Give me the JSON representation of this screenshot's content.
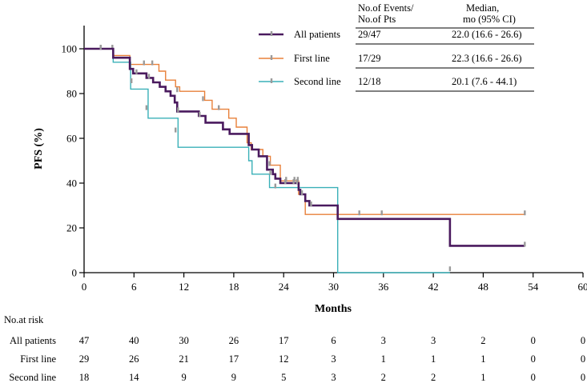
{
  "chart_data": {
    "type": "line",
    "subtype": "kaplan-meier",
    "title": "",
    "xlabel": "Months",
    "ylabel": "PFS (%)",
    "xlim": [
      0,
      60
    ],
    "ylim": [
      0,
      100
    ],
    "xticks": [
      0,
      6,
      12,
      18,
      24,
      30,
      36,
      42,
      48,
      54,
      60
    ],
    "yticks": [
      0,
      20,
      40,
      60,
      80,
      100
    ],
    "grid": false,
    "legend": {
      "placement": "top-right",
      "header_events": "No.of Events/",
      "header_pts": "No.of Pts",
      "header_median": "Median,",
      "header_ci": "mo (95% CI)"
    },
    "series": [
      {
        "name": "All patients",
        "color": "#4a1a5e",
        "events": "29/47",
        "median": "22.0 (16.6 - 26.6)",
        "steps": [
          [
            0,
            100
          ],
          [
            3.5,
            96
          ],
          [
            5.5,
            91
          ],
          [
            5.9,
            89
          ],
          [
            7.5,
            87
          ],
          [
            8.3,
            85
          ],
          [
            9.1,
            83
          ],
          [
            9.8,
            81
          ],
          [
            10.4,
            79
          ],
          [
            10.9,
            76
          ],
          [
            11.2,
            72
          ],
          [
            13.8,
            70
          ],
          [
            14.6,
            67
          ],
          [
            16.7,
            64
          ],
          [
            17.5,
            62
          ],
          [
            19.8,
            57
          ],
          [
            20.2,
            55
          ],
          [
            21.0,
            52
          ],
          [
            22.0,
            46
          ],
          [
            22.7,
            44
          ],
          [
            23.0,
            42
          ],
          [
            23.6,
            40
          ],
          [
            25.8,
            37
          ],
          [
            26.0,
            35
          ],
          [
            26.6,
            32
          ],
          [
            27.1,
            30
          ],
          [
            30.5,
            24
          ],
          [
            44.0,
            12
          ],
          [
            53.0,
            12
          ]
        ],
        "censors": [
          [
            2,
            100
          ],
          [
            6.3,
            89
          ],
          [
            7.8,
            87
          ],
          [
            11.3,
            72
          ],
          [
            13.9,
            70
          ],
          [
            22.4,
            44
          ],
          [
            24.2,
            40
          ],
          [
            25.2,
            40
          ],
          [
            25.6,
            40
          ],
          [
            26.2,
            35
          ],
          [
            27.3,
            30
          ],
          [
            53,
            12
          ]
        ]
      },
      {
        "name": "First line",
        "color": "#e8803a",
        "events": "17/29",
        "median": "22.3 (16.6 - 26.6)",
        "steps": [
          [
            0,
            100
          ],
          [
            3.5,
            97
          ],
          [
            5.5,
            93
          ],
          [
            9.0,
            90
          ],
          [
            9.8,
            86
          ],
          [
            11.0,
            83
          ],
          [
            11.5,
            81
          ],
          [
            14.5,
            77
          ],
          [
            15.4,
            73
          ],
          [
            17.4,
            69
          ],
          [
            18.3,
            65
          ],
          [
            19.6,
            58
          ],
          [
            20.1,
            55
          ],
          [
            21.5,
            52
          ],
          [
            22.4,
            48
          ],
          [
            23.6,
            41
          ],
          [
            25.8,
            35
          ],
          [
            26.6,
            26
          ],
          [
            53.0,
            26
          ]
        ],
        "censors": [
          [
            2,
            100
          ],
          [
            3.4,
            100
          ],
          [
            7.2,
            93
          ],
          [
            8.2,
            93
          ],
          [
            11.2,
            81
          ],
          [
            14.3,
            77
          ],
          [
            16.2,
            73
          ],
          [
            22.3,
            48
          ],
          [
            24.3,
            41
          ],
          [
            25.3,
            41
          ],
          [
            25.7,
            41
          ],
          [
            33.1,
            26
          ],
          [
            35.8,
            26
          ],
          [
            53,
            26
          ]
        ]
      },
      {
        "name": "Second line",
        "color": "#3ab0b8",
        "events": "12/18",
        "median": "20.1 (7.6 - 44.1)",
        "steps": [
          [
            0,
            100
          ],
          [
            3.5,
            94
          ],
          [
            5.6,
            82
          ],
          [
            7.7,
            69
          ],
          [
            11.3,
            56
          ],
          [
            19.8,
            50
          ],
          [
            20.2,
            44
          ],
          [
            22.3,
            38
          ],
          [
            30.5,
            0
          ],
          [
            44.0,
            0
          ]
        ],
        "censors": [
          [
            5.7,
            85
          ],
          [
            7.5,
            73
          ],
          [
            11.0,
            63
          ],
          [
            23.0,
            38
          ],
          [
            44,
            1
          ]
        ]
      }
    ],
    "risk_table": {
      "header": "No.at risk",
      "timepoints": [
        0,
        6,
        12,
        18,
        24,
        30,
        36,
        42,
        48,
        54,
        60
      ],
      "rows": [
        {
          "label": "All patients",
          "values": [
            47,
            40,
            30,
            26,
            17,
            6,
            3,
            3,
            2,
            0,
            0
          ]
        },
        {
          "label": "First line",
          "values": [
            29,
            26,
            21,
            17,
            12,
            3,
            1,
            1,
            1,
            0,
            0
          ]
        },
        {
          "label": "Second line",
          "values": [
            18,
            14,
            9,
            9,
            5,
            3,
            2,
            2,
            1,
            0,
            0
          ]
        }
      ]
    }
  }
}
